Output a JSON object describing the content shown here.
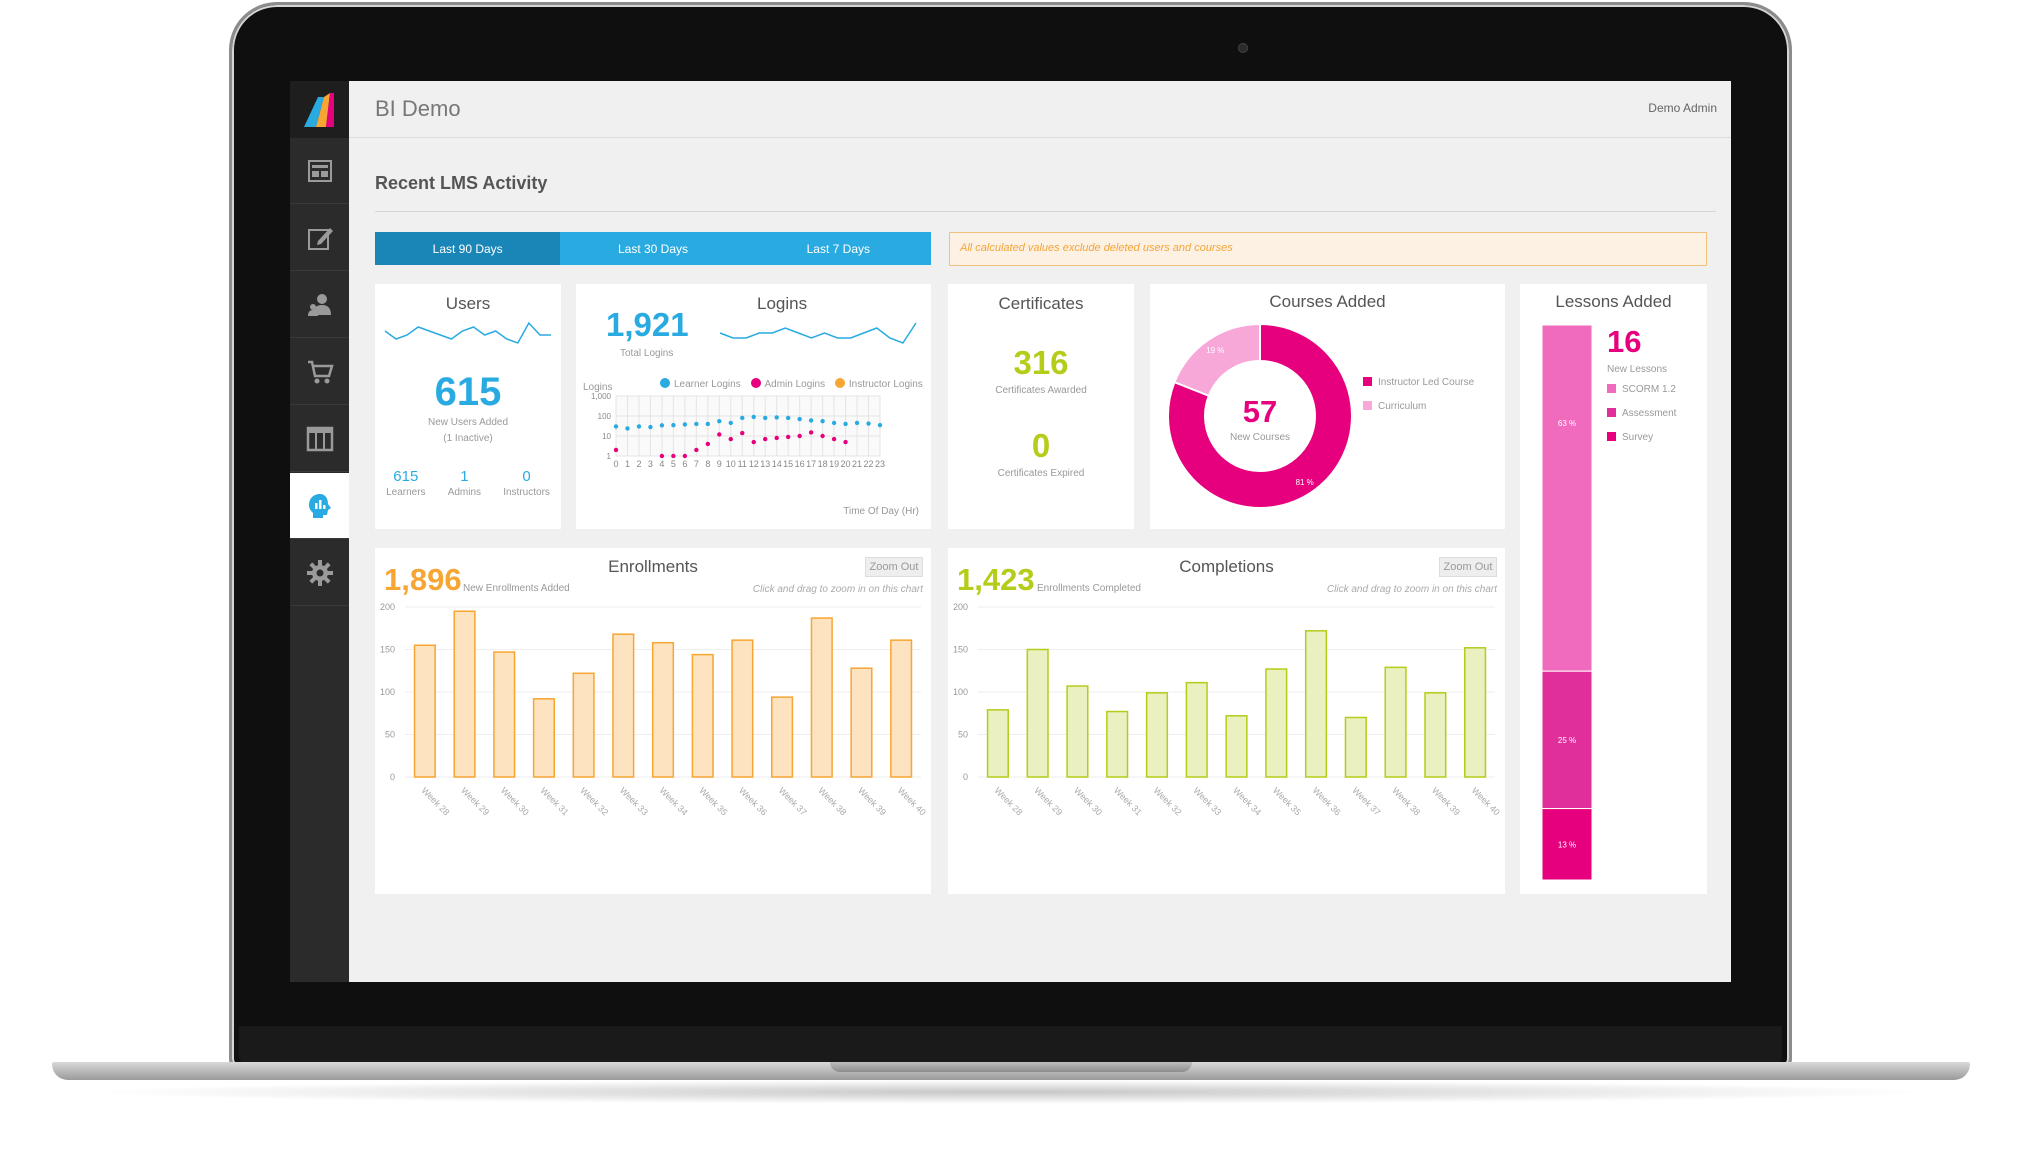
{
  "app": {
    "title": "BI Demo",
    "user": "Demo Admin"
  },
  "sidebar": {
    "items": [
      {
        "name": "dashboard",
        "icon": "dashboard-icon"
      },
      {
        "name": "edit",
        "icon": "edit-icon"
      },
      {
        "name": "users",
        "icon": "users-icon"
      },
      {
        "name": "cart",
        "icon": "cart-icon"
      },
      {
        "name": "catalog",
        "icon": "columns-icon"
      },
      {
        "name": "reports",
        "icon": "head-chart-icon",
        "active": true
      },
      {
        "name": "settings",
        "icon": "gear-icon"
      }
    ]
  },
  "page": {
    "section_title": "Recent LMS Activity"
  },
  "range_tabs": [
    {
      "label": "Last 90 Days",
      "selected": true
    },
    {
      "label": "Last 30 Days",
      "selected": false
    },
    {
      "label": "Last 7 Days",
      "selected": false
    }
  ],
  "notice": "All calculated values exclude deleted users and courses",
  "users_card": {
    "title": "Users",
    "value": "615",
    "caption": "New Users Added",
    "sub_caption": "(1 Inactive)",
    "stats": [
      {
        "value": "615",
        "label": "Learners"
      },
      {
        "value": "1",
        "label": "Admins"
      },
      {
        "value": "0",
        "label": "Instructors"
      }
    ]
  },
  "logins_card": {
    "title": "Logins",
    "value": "1,921",
    "caption": "Total Logins",
    "y_label": "Logins",
    "x_label": "Time Of Day (Hr)",
    "legend": [
      "Learner Logins",
      "Admin Logins",
      "Instructor Logins"
    ]
  },
  "certificates_card": {
    "title": "Certificates",
    "awarded": "316",
    "awarded_label": "Certificates Awarded",
    "expired": "0",
    "expired_label": "Certificates Expired"
  },
  "courses_card": {
    "title": "Courses Added",
    "value": "57",
    "caption": "New Courses",
    "legend": [
      "Instructor Led Course",
      "Curriculum"
    ]
  },
  "lessons_card": {
    "title": "Lessons Added",
    "value": "16",
    "caption": "New Lessons",
    "legend": [
      "SCORM 1.2",
      "Assessment",
      "Survey"
    ]
  },
  "enrollments_card": {
    "title": "Enrollments",
    "value": "1,896",
    "caption": "New Enrollments Added",
    "zoom_label": "Zoom Out",
    "hint": "Click and drag to zoom in on this chart"
  },
  "completions_card": {
    "title": "Completions",
    "value": "1,423",
    "caption": "Enrollments Completed",
    "zoom_label": "Zoom Out",
    "hint": "Click and drag to zoom in on this chart"
  },
  "colors": {
    "blue": "#29abe2",
    "dark_blue": "#1a86b8",
    "magenta": "#e6007e",
    "pink": "#f06bbd",
    "light_pink": "#f7a8d8",
    "orange": "#f7a533",
    "lime": "#b5cc18",
    "sidebar": "#2b2b2b"
  },
  "chart_data": [
    {
      "type": "line",
      "id": "users-sparkline",
      "values": [
        5,
        3,
        4,
        6,
        5,
        4,
        3,
        5,
        6,
        4,
        5,
        3,
        2,
        7,
        4,
        4
      ]
    },
    {
      "type": "line",
      "id": "logins-sparkline",
      "values": [
        5,
        4,
        4,
        5,
        5,
        6,
        5,
        4,
        5,
        4,
        4,
        5,
        6,
        4,
        3,
        7
      ]
    },
    {
      "type": "scatter",
      "id": "logins-by-hour",
      "x": [
        0,
        1,
        2,
        3,
        4,
        5,
        6,
        7,
        8,
        9,
        10,
        11,
        12,
        13,
        14,
        15,
        16,
        17,
        18,
        19,
        20,
        21,
        22,
        23
      ],
      "y_scale": "log",
      "y_ticks": [
        "1",
        "10",
        "100",
        "1,000"
      ],
      "ylim": [
        1,
        1000
      ],
      "series": [
        {
          "name": "Learner Logins",
          "values": [
            30,
            24,
            30,
            28,
            34,
            35,
            38,
            40,
            40,
            55,
            45,
            80,
            90,
            80,
            85,
            80,
            70,
            60,
            55,
            45,
            40,
            45,
            42,
            35
          ]
        },
        {
          "name": "Admin Logins",
          "values": [
            2,
            null,
            null,
            null,
            1,
            1,
            1,
            2,
            4,
            12,
            7,
            14,
            5,
            7,
            8,
            9,
            10,
            15,
            10,
            7,
            5,
            null,
            null,
            null
          ]
        },
        {
          "name": "Instructor Logins",
          "values": []
        }
      ]
    },
    {
      "type": "pie",
      "id": "courses-added",
      "labels": [
        "Instructor Led Course",
        "Curriculum"
      ],
      "values": [
        81,
        19
      ],
      "value_labels": [
        "81 %",
        "19 %"
      ]
    },
    {
      "type": "bar",
      "id": "lessons-added",
      "stacked": true,
      "labels": [
        "SCORM 1.2",
        "Assessment",
        "Survey"
      ],
      "values": [
        63,
        25,
        13
      ],
      "value_labels": [
        "63 %",
        "25 %",
        "13 %"
      ]
    },
    {
      "type": "bar",
      "id": "enrollments",
      "categories": [
        "Week 28",
        "Week 29",
        "Week 30",
        "Week 31",
        "Week 32",
        "Week 33",
        "Week 34",
        "Week 35",
        "Week 36",
        "Week 37",
        "Week 38",
        "Week 39",
        "Week 40"
      ],
      "values": [
        155,
        195,
        147,
        92,
        122,
        168,
        158,
        144,
        161,
        94,
        187,
        128,
        161
      ],
      "ylim": [
        0,
        200
      ],
      "y_ticks": [
        0,
        50,
        100,
        150,
        200
      ]
    },
    {
      "type": "bar",
      "id": "completions",
      "categories": [
        "Week 28",
        "Week 29",
        "Week 30",
        "Week 31",
        "Week 32",
        "Week 33",
        "Week 34",
        "Week 35",
        "Week 36",
        "Week 37",
        "Week 38",
        "Week 39",
        "Week 40"
      ],
      "values": [
        79,
        150,
        107,
        77,
        99,
        111,
        72,
        127,
        172,
        70,
        129,
        99,
        152
      ],
      "ylim": [
        0,
        200
      ],
      "y_ticks": [
        0,
        50,
        100,
        150,
        200
      ]
    }
  ]
}
